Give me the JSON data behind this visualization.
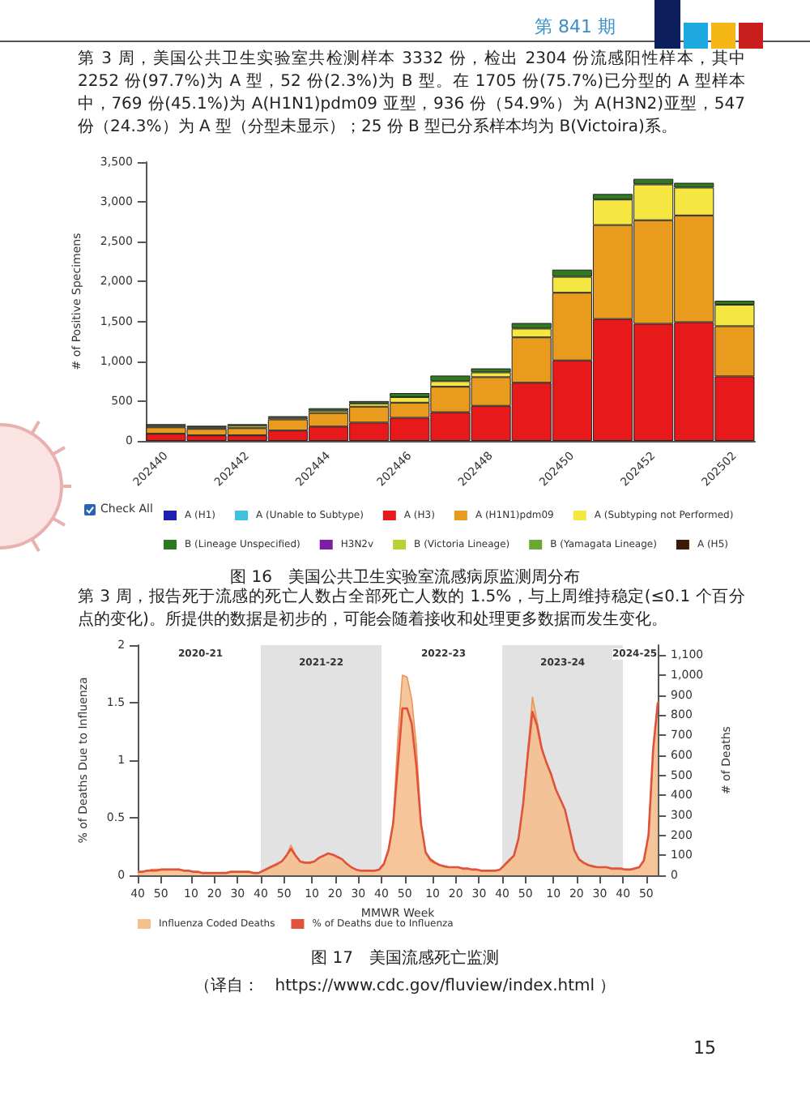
{
  "chart_data": [
    {
      "type": "bar",
      "stacked": true,
      "ylabel": "# of Positive Specimens",
      "categories": [
        "202440",
        null,
        "202442",
        null,
        "202444",
        null,
        "202446",
        null,
        "202448",
        null,
        "202450",
        null,
        "202452",
        null,
        "202502"
      ],
      "series": [
        {
          "name": "A (H1)",
          "color": "#1f1fb4",
          "values": [
            0,
            0,
            0,
            0,
            0,
            0,
            0,
            0,
            0,
            0,
            0,
            0,
            0,
            0,
            0
          ]
        },
        {
          "name": "A (Unable to Subtype)",
          "color": "#40c0e0",
          "values": [
            0,
            0,
            0,
            0,
            0,
            0,
            0,
            0,
            0,
            0,
            0,
            0,
            0,
            0,
            0
          ]
        },
        {
          "name": "A (H3)",
          "color": "#e8191a",
          "values": [
            90,
            70,
            70,
            130,
            180,
            230,
            290,
            360,
            440,
            730,
            1010,
            1530,
            1470,
            1490,
            810
          ]
        },
        {
          "name": "A (H1N1)pdm09",
          "color": "#e99b1e",
          "values": [
            80,
            80,
            90,
            140,
            170,
            200,
            190,
            320,
            360,
            570,
            850,
            1180,
            1300,
            1340,
            630
          ]
        },
        {
          "name": "A (Subtyping not Performed)",
          "color": "#f5e642",
          "values": [
            20,
            20,
            30,
            20,
            30,
            40,
            70,
            70,
            60,
            110,
            200,
            320,
            450,
            350,
            270
          ]
        },
        {
          "name": "B (Lineage Unspecified)",
          "color": "#2f7a20",
          "values": [
            20,
            20,
            20,
            20,
            30,
            30,
            50,
            70,
            50,
            70,
            90,
            70,
            70,
            60,
            50
          ]
        },
        {
          "name": "H3N2v",
          "color": "#7b1fa2",
          "values": [
            0,
            0,
            0,
            0,
            0,
            0,
            0,
            0,
            0,
            0,
            0,
            0,
            0,
            0,
            0
          ]
        },
        {
          "name": "B (Victoria Lineage)",
          "color": "#b5d334",
          "values": [
            0,
            0,
            0,
            0,
            0,
            0,
            0,
            0,
            0,
            0,
            0,
            0,
            0,
            0,
            0
          ]
        },
        {
          "name": "B (Yamagata Lineage)",
          "color": "#6aa832",
          "values": [
            0,
            0,
            0,
            0,
            0,
            0,
            0,
            0,
            0,
            0,
            0,
            0,
            0,
            0,
            0
          ]
        },
        {
          "name": "A (H5)",
          "color": "#3b1a0a",
          "values": [
            0,
            0,
            0,
            0,
            0,
            0,
            0,
            0,
            0,
            0,
            0,
            0,
            0,
            0,
            0
          ]
        }
      ],
      "ylim": [
        0,
        3500
      ],
      "yticks": [
        0,
        500,
        {
          "value": 1000,
          "label": "1,000"
        },
        {
          "value": 1500,
          "label": "1,500"
        },
        {
          "value": 2000,
          "label": "2,000"
        },
        {
          "value": 2500,
          "label": "2,500"
        },
        {
          "value": 3000,
          "label": "3,000"
        },
        {
          "value": 3500,
          "label": "3,500"
        }
      ],
      "legend": "bottom",
      "annotations": [
        "第 841 期",
        "第 3 周，美国公共卫生实验室共检测样本 3332 份，检出 2304 份流感阳性样本，其中 2252 份(97.7%)为 A 型，52 份(2.3%)为 B 型。在 1705 份(75.7%)已分型的 A 型样本中，769 份(45.1%)为 A(H1N1)pdm09 亚型，936 份（54.9%）为 A(H3N2)亚型，547 份（24.3%）为 A 型（分型未显示）；25 份 B 型已分系样本均为 B(Victoira)系。",
        "Check All",
        "图 16　美国公共卫生实验室流感病原监测周分布"
      ]
    },
    {
      "type": "line",
      "xlabel": "MMWR Week",
      "ylabel": "% of Deaths Due to Influenza",
      "y2label": "# of Deaths",
      "x": [
        "2020-10-03",
        "2020-10-17",
        "2020-10-31",
        "2020-11-14",
        "2020-11-28",
        "2020-12-12",
        "2020-12-26",
        "2021-01-09",
        "2021-01-23",
        "2021-02-06",
        "2021-02-20",
        "2021-03-06",
        "2021-03-20",
        "2021-04-03",
        "2021-04-17",
        "2021-05-01",
        "2021-05-15",
        "2021-05-29",
        "2021-06-12",
        "2021-06-26",
        "2021-07-10",
        "2021-07-24",
        "2021-08-07",
        "2021-08-21",
        "2021-09-04",
        "2021-09-18",
        "2021-10-02",
        "2021-10-16",
        "2021-10-30",
        "2021-11-13",
        "2021-11-27",
        "2021-12-11",
        "2021-12-25",
        "2022-01-08",
        "2022-01-22",
        "2022-02-05",
        "2022-02-19",
        "2022-03-05",
        "2022-03-19",
        "2022-04-02",
        "2022-04-16",
        "2022-04-30",
        "2022-05-14",
        "2022-05-28",
        "2022-06-11",
        "2022-06-25",
        "2022-07-09",
        "2022-07-23",
        "2022-08-06",
        "2022-08-20",
        "2022-09-03",
        "2022-09-17",
        "2022-10-01",
        "2022-10-15",
        "2022-10-29",
        "2022-11-12",
        "2022-11-26",
        "2022-12-10",
        "2022-12-24",
        "2023-01-07",
        "2023-01-21",
        "2023-02-04",
        "2023-02-18",
        "2023-03-04",
        "2023-03-18",
        "2023-04-01",
        "2023-04-15",
        "2023-04-29",
        "2023-05-13",
        "2023-05-27",
        "2023-06-10",
        "2023-06-24",
        "2023-07-08",
        "2023-07-22",
        "2023-08-05",
        "2023-08-19",
        "2023-09-02",
        "2023-09-16",
        "2023-09-30",
        "2023-10-14",
        "2023-10-28",
        "2023-11-11",
        "2023-11-25",
        "2023-12-09",
        "2023-12-23",
        "2024-01-06",
        "2024-01-20",
        "2024-02-03",
        "2024-02-17",
        "2024-03-02",
        "2024-03-16",
        "2024-03-30",
        "2024-04-13",
        "2024-04-27",
        "2024-05-11",
        "2024-05-25",
        "2024-06-08",
        "2024-06-22",
        "2024-07-06",
        "2024-07-20",
        "2024-08-03",
        "2024-08-17",
        "2024-08-31",
        "2024-09-14",
        "2024-09-28",
        "2024-10-12",
        "2024-10-26",
        "2024-11-09",
        "2024-11-23",
        "2024-12-07",
        "2024-12-21",
        "2025-01-04",
        "2025-01-18"
      ],
      "series": [
        {
          "name": "Influenza Coded Deaths",
          "type": "area",
          "axis": "y2",
          "color": "#f5c08f",
          "values": [
            20,
            20,
            20,
            30,
            30,
            30,
            30,
            30,
            30,
            30,
            20,
            20,
            20,
            20,
            10,
            10,
            10,
            10,
            10,
            10,
            20,
            20,
            20,
            20,
            20,
            10,
            10,
            20,
            30,
            40,
            50,
            70,
            100,
            150,
            100,
            70,
            60,
            60,
            70,
            90,
            100,
            110,
            100,
            90,
            80,
            60,
            40,
            30,
            20,
            20,
            20,
            20,
            30,
            50,
            120,
            260,
            680,
            1000,
            990,
            880,
            650,
            260,
            110,
            70,
            60,
            50,
            40,
            40,
            40,
            40,
            30,
            30,
            30,
            30,
            20,
            20,
            20,
            20,
            30,
            50,
            80,
            100,
            180,
            360,
            620,
            890,
            770,
            640,
            560,
            510,
            430,
            380,
            330,
            230,
            120,
            80,
            60,
            50,
            40,
            40,
            40,
            40,
            30,
            30,
            30,
            30,
            30,
            30,
            40,
            70,
            200,
            620,
            870
          ]
        },
        {
          "name": "% of Deaths due to Influenza",
          "type": "line",
          "color": "#e0533a",
          "values": [
            0.03,
            0.03,
            0.04,
            0.04,
            0.04,
            0.05,
            0.05,
            0.05,
            0.05,
            0.05,
            0.04,
            0.04,
            0.03,
            0.03,
            0.02,
            0.02,
            0.02,
            0.02,
            0.02,
            0.02,
            0.03,
            0.03,
            0.03,
            0.03,
            0.03,
            0.02,
            0.02,
            0.04,
            0.06,
            0.08,
            0.1,
            0.12,
            0.17,
            0.23,
            0.17,
            0.12,
            0.11,
            0.11,
            0.12,
            0.15,
            0.17,
            0.19,
            0.18,
            0.16,
            0.14,
            0.1,
            0.07,
            0.05,
            0.04,
            0.04,
            0.04,
            0.04,
            0.05,
            0.1,
            0.22,
            0.45,
            0.95,
            1.45,
            1.45,
            1.32,
            0.95,
            0.45,
            0.2,
            0.14,
            0.11,
            0.09,
            0.08,
            0.07,
            0.07,
            0.07,
            0.06,
            0.06,
            0.05,
            0.05,
            0.04,
            0.04,
            0.04,
            0.04,
            0.05,
            0.09,
            0.13,
            0.17,
            0.32,
            0.62,
            1.05,
            1.42,
            1.3,
            1.1,
            0.98,
            0.88,
            0.75,
            0.66,
            0.57,
            0.4,
            0.22,
            0.14,
            0.11,
            0.09,
            0.08,
            0.07,
            0.07,
            0.07,
            0.06,
            0.06,
            0.06,
            0.05,
            0.05,
            0.06,
            0.07,
            0.13,
            0.35,
            1.1,
            1.5
          ]
        }
      ],
      "xlim": [
        "2020-10-03",
        "2025-01-18"
      ],
      "xticks": [
        {
          "value": "2020-10-03",
          "label": "40"
        },
        {
          "value": "2020-12-12",
          "label": "50"
        },
        {
          "value": "2021-03-13",
          "label": "10"
        },
        {
          "value": "2021-05-22",
          "label": "20"
        },
        {
          "value": "2021-07-31",
          "label": "30"
        },
        {
          "value": "2021-10-09",
          "label": "40"
        },
        {
          "value": "2021-12-18",
          "label": "50"
        },
        {
          "value": "2022-03-12",
          "label": "10"
        },
        {
          "value": "2022-05-21",
          "label": "20"
        },
        {
          "value": "2022-07-30",
          "label": "30"
        },
        {
          "value": "2022-10-08",
          "label": "40"
        },
        {
          "value": "2022-12-17",
          "label": "50"
        },
        {
          "value": "2023-03-11",
          "label": "10"
        },
        {
          "value": "2023-05-20",
          "label": "20"
        },
        {
          "value": "2023-07-29",
          "label": "30"
        },
        {
          "value": "2023-10-07",
          "label": "40"
        },
        {
          "value": "2023-12-16",
          "label": "50"
        },
        {
          "value": "2024-03-09",
          "label": "10"
        },
        {
          "value": "2024-05-18",
          "label": "20"
        },
        {
          "value": "2024-07-27",
          "label": "30"
        },
        {
          "value": "2024-10-05",
          "label": "40"
        },
        {
          "value": "2024-12-14",
          "label": "50"
        }
      ],
      "ylim": [
        0,
        2
      ],
      "yticks": [
        0,
        0.5,
        1,
        1.5,
        2
      ],
      "y2lim": [
        0,
        1150
      ],
      "y2ticks": [
        0,
        100,
        200,
        300,
        400,
        500,
        600,
        700,
        800,
        900,
        {
          "value": 1000,
          "label": "1,000"
        },
        {
          "value": 1100,
          "label": "1,100"
        }
      ],
      "bands": [
        {
          "axis": "x",
          "from": "2021-10-09",
          "to": "2022-10-08",
          "label": "2021-22",
          "color": "#e2e2e2"
        },
        {
          "axis": "x",
          "from": "2023-10-07",
          "to": "2024-10-05",
          "label": "2023-24",
          "color": "#e2e2e2"
        }
      ],
      "legend": "bottom left",
      "annotations": [
        "第 3 周，报告死于流感的死亡人数占全部死亡人数的 1.5%，与上周维持稳定(≤0.1 个百分点的变化)。所提供的数据是初步的，可能会随着接收和处理更多数据而发生变化。",
        "图 17　美国流感死亡监测",
        "（译自：　https://www.cdc.gov/fluview/index.html ）",
        "15",
        "2020-21",
        "2022-23",
        "2024-25"
      ]
    }
  ]
}
